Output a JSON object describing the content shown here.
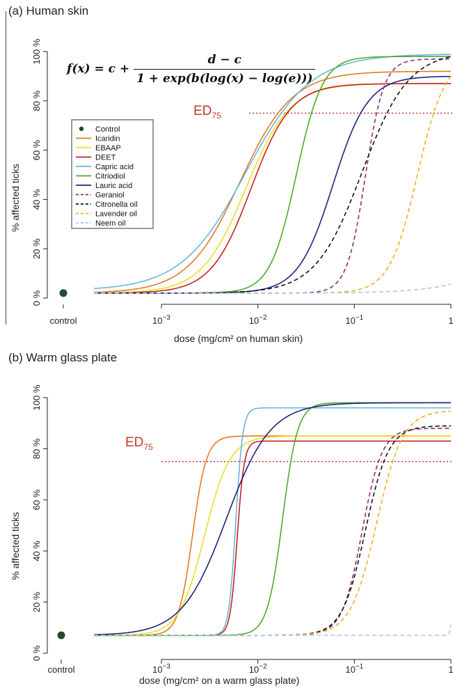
{
  "panels": [
    {
      "title": "(a) Human skin",
      "xlabel": "dose (mg/cm² on human skin)",
      "ylabel": "% affected ticks",
      "formula": {
        "lhs": "f(x) = c +",
        "numerator": "d − c",
        "denominator": "1 + exp(b(log(x) − log(e)))"
      },
      "ed_label": {
        "main": "ED",
        "sub": "75"
      }
    },
    {
      "title": "(b) Warm glass plate",
      "xlabel": "dose (mg/cm² on a warm glass plate)",
      "ylabel": "% affected ticks",
      "ed_label": {
        "main": "ED",
        "sub": "75"
      }
    }
  ],
  "legend": [
    {
      "name": "Control",
      "color": "#1e4d2b",
      "style": "point"
    },
    {
      "name": "Icaridin",
      "color": "#e07b24",
      "style": "solid"
    },
    {
      "name": "EBAAP",
      "color": "#e8e020",
      "style": "solid"
    },
    {
      "name": "DEET",
      "color": "#c82020",
      "style": "solid"
    },
    {
      "name": "Capric acid",
      "color": "#6bb5d6",
      "style": "solid"
    },
    {
      "name": "Citriodiol",
      "color": "#4aab2a",
      "style": "solid"
    },
    {
      "name": "Lauric acid",
      "color": "#1c237a",
      "style": "solid"
    },
    {
      "name": "Geraniol",
      "color": "#8e2a7a",
      "style": "dashed"
    },
    {
      "name": "Citronella oil",
      "color": "#111111",
      "style": "dashed"
    },
    {
      "name": "Lavender oil",
      "color": "#f0b020",
      "style": "dashed"
    },
    {
      "name": "Neem oil",
      "color": "#a9c9e6",
      "style": "dashed"
    }
  ],
  "chart_data": [
    {
      "type": "line",
      "title": "(a) Human skin",
      "xlabel": "dose (mg/cm² on human skin)",
      "ylabel": "% affected ticks",
      "x_scale": "log",
      "xlim": [
        0.0002,
        1
      ],
      "ylim": [
        0,
        100
      ],
      "x_ticks": [
        "control",
        "10^-3",
        "10^-2",
        "10^-1",
        "1"
      ],
      "y_ticks": [
        "0 %",
        "20 %",
        "40 %",
        "60 %",
        "80 %",
        "100 %"
      ],
      "legend_position": "left",
      "reference_line": {
        "label": "ED75",
        "y": 75
      },
      "control_point": {
        "x": "control",
        "y": 2
      },
      "series": [
        {
          "name": "Icaridin",
          "c": 2,
          "d": 92,
          "e": 0.0065,
          "b": 1.6,
          "dash": false,
          "color": "#e07b24"
        },
        {
          "name": "EBAAP",
          "c": 2,
          "d": 87,
          "e": 0.0075,
          "b": 1.9,
          "dash": false,
          "color": "#e8e020"
        },
        {
          "name": "DEET",
          "c": 2,
          "d": 87,
          "e": 0.0085,
          "b": 2.1,
          "dash": false,
          "color": "#c82020"
        },
        {
          "name": "Capric acid",
          "c": 3,
          "d": 99,
          "e": 0.0075,
          "b": 1.3,
          "dash": false,
          "color": "#6bb5d6"
        },
        {
          "name": "Citriodiol",
          "c": 2,
          "d": 98,
          "e": 0.025,
          "b": 3.2,
          "dash": false,
          "color": "#4aab2a"
        },
        {
          "name": "Lauric acid",
          "c": 2,
          "d": 90,
          "e": 0.06,
          "b": 2.4,
          "dash": false,
          "color": "#1c237a"
        },
        {
          "name": "Geraniol",
          "c": 2,
          "d": 97,
          "e": 0.13,
          "b": 4.5,
          "dash": true,
          "color": "#8e2a7a"
        },
        {
          "name": "Citronella oil",
          "c": 2,
          "d": 100,
          "e": 0.12,
          "b": 1.8,
          "dash": true,
          "color": "#111111"
        },
        {
          "name": "Lavender oil",
          "c": 2,
          "d": 98,
          "e": 0.45,
          "b": 3.0,
          "dash": true,
          "color": "#f0b020"
        },
        {
          "name": "Neem oil",
          "c": 2,
          "d": 100,
          "e": 15,
          "b": 1.2,
          "dash": true,
          "color": "#a9c9e6"
        }
      ]
    },
    {
      "type": "line",
      "title": "(b) Warm glass plate",
      "xlabel": "dose (mg/cm² on a warm glass plate)",
      "ylabel": "% affected ticks",
      "x_scale": "log",
      "xlim": [
        0.0002,
        1
      ],
      "ylim": [
        0,
        100
      ],
      "x_ticks": [
        "control",
        "10^-3",
        "10^-2",
        "10^-1",
        "1"
      ],
      "y_ticks": [
        "0 %",
        "20 %",
        "40 %",
        "60 %",
        "80 %",
        "100 %"
      ],
      "reference_line": {
        "label": "ED75",
        "y": 75
      },
      "control_point": {
        "x": "control",
        "y": 7
      },
      "series": [
        {
          "name": "Icaridin",
          "c": 7,
          "d": 85,
          "e": 0.0021,
          "b": 6.0,
          "dash": false,
          "color": "#e07b24"
        },
        {
          "name": "EBAAP",
          "c": 7,
          "d": 85,
          "e": 0.0028,
          "b": 3.3,
          "dash": false,
          "color": "#e8e020"
        },
        {
          "name": "DEET",
          "c": 7,
          "d": 83,
          "e": 0.0061,
          "b": 12.0,
          "dash": false,
          "color": "#c82020"
        },
        {
          "name": "Capric acid",
          "c": 7,
          "d": 96,
          "e": 0.0059,
          "b": 12.0,
          "dash": false,
          "color": "#6bb5d6"
        },
        {
          "name": "Citriodiol",
          "c": 7,
          "d": 98,
          "e": 0.018,
          "b": 5.5,
          "dash": false,
          "color": "#4aab2a"
        },
        {
          "name": "Lauric acid",
          "c": 7,
          "d": 98,
          "e": 0.0047,
          "b": 1.9,
          "dash": false,
          "color": "#1c237a"
        },
        {
          "name": "Geraniol",
          "c": 7,
          "d": 88,
          "e": 0.12,
          "b": 4.2,
          "dash": true,
          "color": "#8e2a7a"
        },
        {
          "name": "Citronella oil",
          "c": 7,
          "d": 89,
          "e": 0.13,
          "b": 3.6,
          "dash": true,
          "color": "#111111"
        },
        {
          "name": "Lavender oil",
          "c": 7,
          "d": 95,
          "e": 0.17,
          "b": 3.2,
          "dash": true,
          "color": "#f0b020"
        },
        {
          "name": "Neem oil",
          "c": 7,
          "d": 100,
          "e": 1.08,
          "b": 40.0,
          "dash": true,
          "color": "#a9c9e6"
        }
      ]
    }
  ]
}
